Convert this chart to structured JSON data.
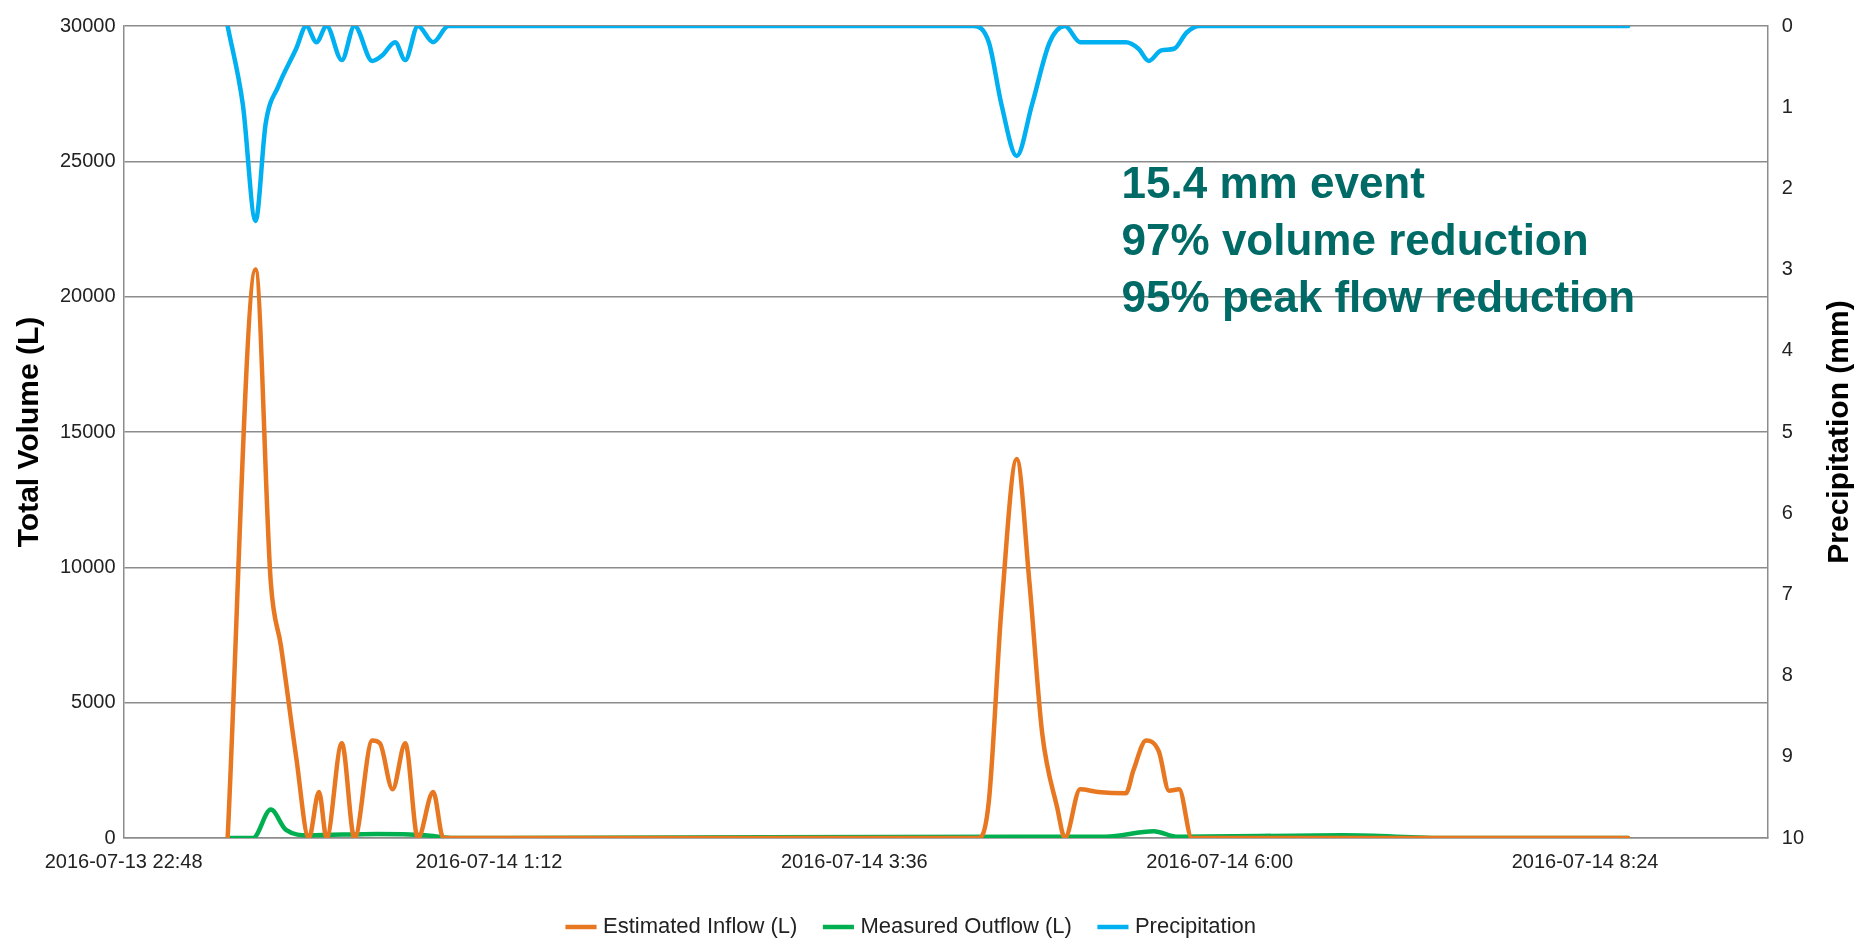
{
  "chart_data": {
    "type": "line",
    "xlabel": null,
    "ylabel": "Total Volume (L)",
    "y2label": "Precipitation (mm)",
    "annotations": [
      "15.4 mm event",
      "97% volume reduction",
      "95% peak flow reduction"
    ],
    "xlim": [
      "2016-07-13T22:48",
      "2016-07-14T09:36"
    ],
    "xticks": [
      {
        "value": "2016-07-13T22:48",
        "label": "2016-07-13 22:48"
      },
      {
        "value": "2016-07-14T01:12",
        "label": "2016-07-14 1:12"
      },
      {
        "value": "2016-07-14T03:36",
        "label": "2016-07-14 3:36"
      },
      {
        "value": "2016-07-14T06:00",
        "label": "2016-07-14 6:00"
      },
      {
        "value": "2016-07-14T08:24",
        "label": "2016-07-14 8:24"
      }
    ],
    "ylim": [
      0,
      30000
    ],
    "yticks": [
      0,
      5000,
      10000,
      15000,
      20000,
      25000,
      30000
    ],
    "y2lim": [
      10,
      0
    ],
    "y2ticks": [
      0,
      1,
      2,
      3,
      4,
      5,
      6,
      7,
      8,
      9,
      10
    ],
    "grid": "y",
    "legend": "bottom",
    "marker": "none",
    "line_style": "solid",
    "series": [
      {
        "name": "Estimated Inflow (L)",
        "color": "#e87722",
        "x": [
          "2016-07-13T23:29",
          "2016-07-13T23:40",
          "2016-07-13T23:46",
          "2016-07-13T23:50",
          "2016-07-13T23:56",
          "2016-07-14T00:01",
          "2016-07-14T00:05",
          "2016-07-14T00:08",
          "2016-07-14T00:14",
          "2016-07-14T00:19",
          "2016-07-14T00:26",
          "2016-07-14T00:29",
          "2016-07-14T00:34",
          "2016-07-14T00:39",
          "2016-07-14T00:44",
          "2016-07-14T00:50",
          "2016-07-14T00:54",
          "2016-07-14T04:25",
          "2016-07-14T04:29",
          "2016-07-14T04:34",
          "2016-07-14T04:40",
          "2016-07-14T04:45",
          "2016-07-14T04:50",
          "2016-07-14T04:56",
          "2016-07-14T04:59",
          "2016-07-14T05:05",
          "2016-07-14T05:12",
          "2016-07-14T05:23",
          "2016-07-14T05:26",
          "2016-07-14T05:31",
          "2016-07-14T05:36",
          "2016-07-14T05:40",
          "2016-07-14T05:44",
          "2016-07-14T05:49",
          "2016-07-14T08:41"
        ],
        "values": [
          0,
          21000,
          9450,
          7100,
          3000,
          0,
          1700,
          0,
          3500,
          0,
          3600,
          3500,
          1800,
          3500,
          0,
          1700,
          0,
          0,
          1350,
          8500,
          14000,
          9450,
          3900,
          1100,
          0,
          1800,
          1700,
          1650,
          2500,
          3600,
          3200,
          1750,
          1800,
          0,
          0
        ]
      },
      {
        "name": "Measured Outflow (L)",
        "color": "#00b050",
        "x": [
          "2016-07-13T23:29",
          "2016-07-13T23:39",
          "2016-07-13T23:46",
          "2016-07-13T23:52",
          "2016-07-14T00:01",
          "2016-07-14T00:28",
          "2016-07-14T00:47",
          "2016-07-14T00:57",
          "2016-07-14T05:15",
          "2016-07-14T05:34",
          "2016-07-14T05:43",
          "2016-07-14T06:49",
          "2016-07-14T07:30",
          "2016-07-14T08:41"
        ],
        "values": [
          0,
          0,
          1050,
          300,
          100,
          150,
          100,
          0,
          50,
          250,
          50,
          100,
          0,
          0
        ]
      },
      {
        "name": "Precipitation",
        "color": "#00b0f0",
        "axis": "y2",
        "x": [
          "2016-07-13T23:29",
          "2016-07-13T23:35",
          "2016-07-13T23:40",
          "2016-07-13T23:44",
          "2016-07-13T23:49",
          "2016-07-13T23:56",
          "2016-07-14T00:00",
          "2016-07-14T00:04",
          "2016-07-14T00:08",
          "2016-07-14T00:14",
          "2016-07-14T00:19",
          "2016-07-14T00:26",
          "2016-07-14T00:30",
          "2016-07-14T00:35",
          "2016-07-14T00:39",
          "2016-07-14T00:44",
          "2016-07-14T00:50",
          "2016-07-14T00:56",
          "2016-07-14T04:23",
          "2016-07-14T04:29",
          "2016-07-14T04:34",
          "2016-07-14T04:40",
          "2016-07-14T04:46",
          "2016-07-14T04:53",
          "2016-07-14T04:59",
          "2016-07-14T05:05",
          "2016-07-14T05:13",
          "2016-07-14T05:23",
          "2016-07-14T05:28",
          "2016-07-14T05:32",
          "2016-07-14T05:37",
          "2016-07-14T05:42",
          "2016-07-14T05:47",
          "2016-07-14T05:52",
          "2016-07-14T08:41"
        ],
        "values": [
          0,
          0.97,
          2.4,
          1.2,
          0.74,
          0.28,
          0,
          0.2,
          0,
          0.42,
          0,
          0.43,
          0.36,
          0.2,
          0.42,
          0,
          0.2,
          0,
          0,
          0.2,
          0.97,
          1.6,
          0.97,
          0.2,
          0,
          0.2,
          0.2,
          0.2,
          0.28,
          0.43,
          0.3,
          0.28,
          0.08,
          0,
          0
        ]
      }
    ]
  }
}
